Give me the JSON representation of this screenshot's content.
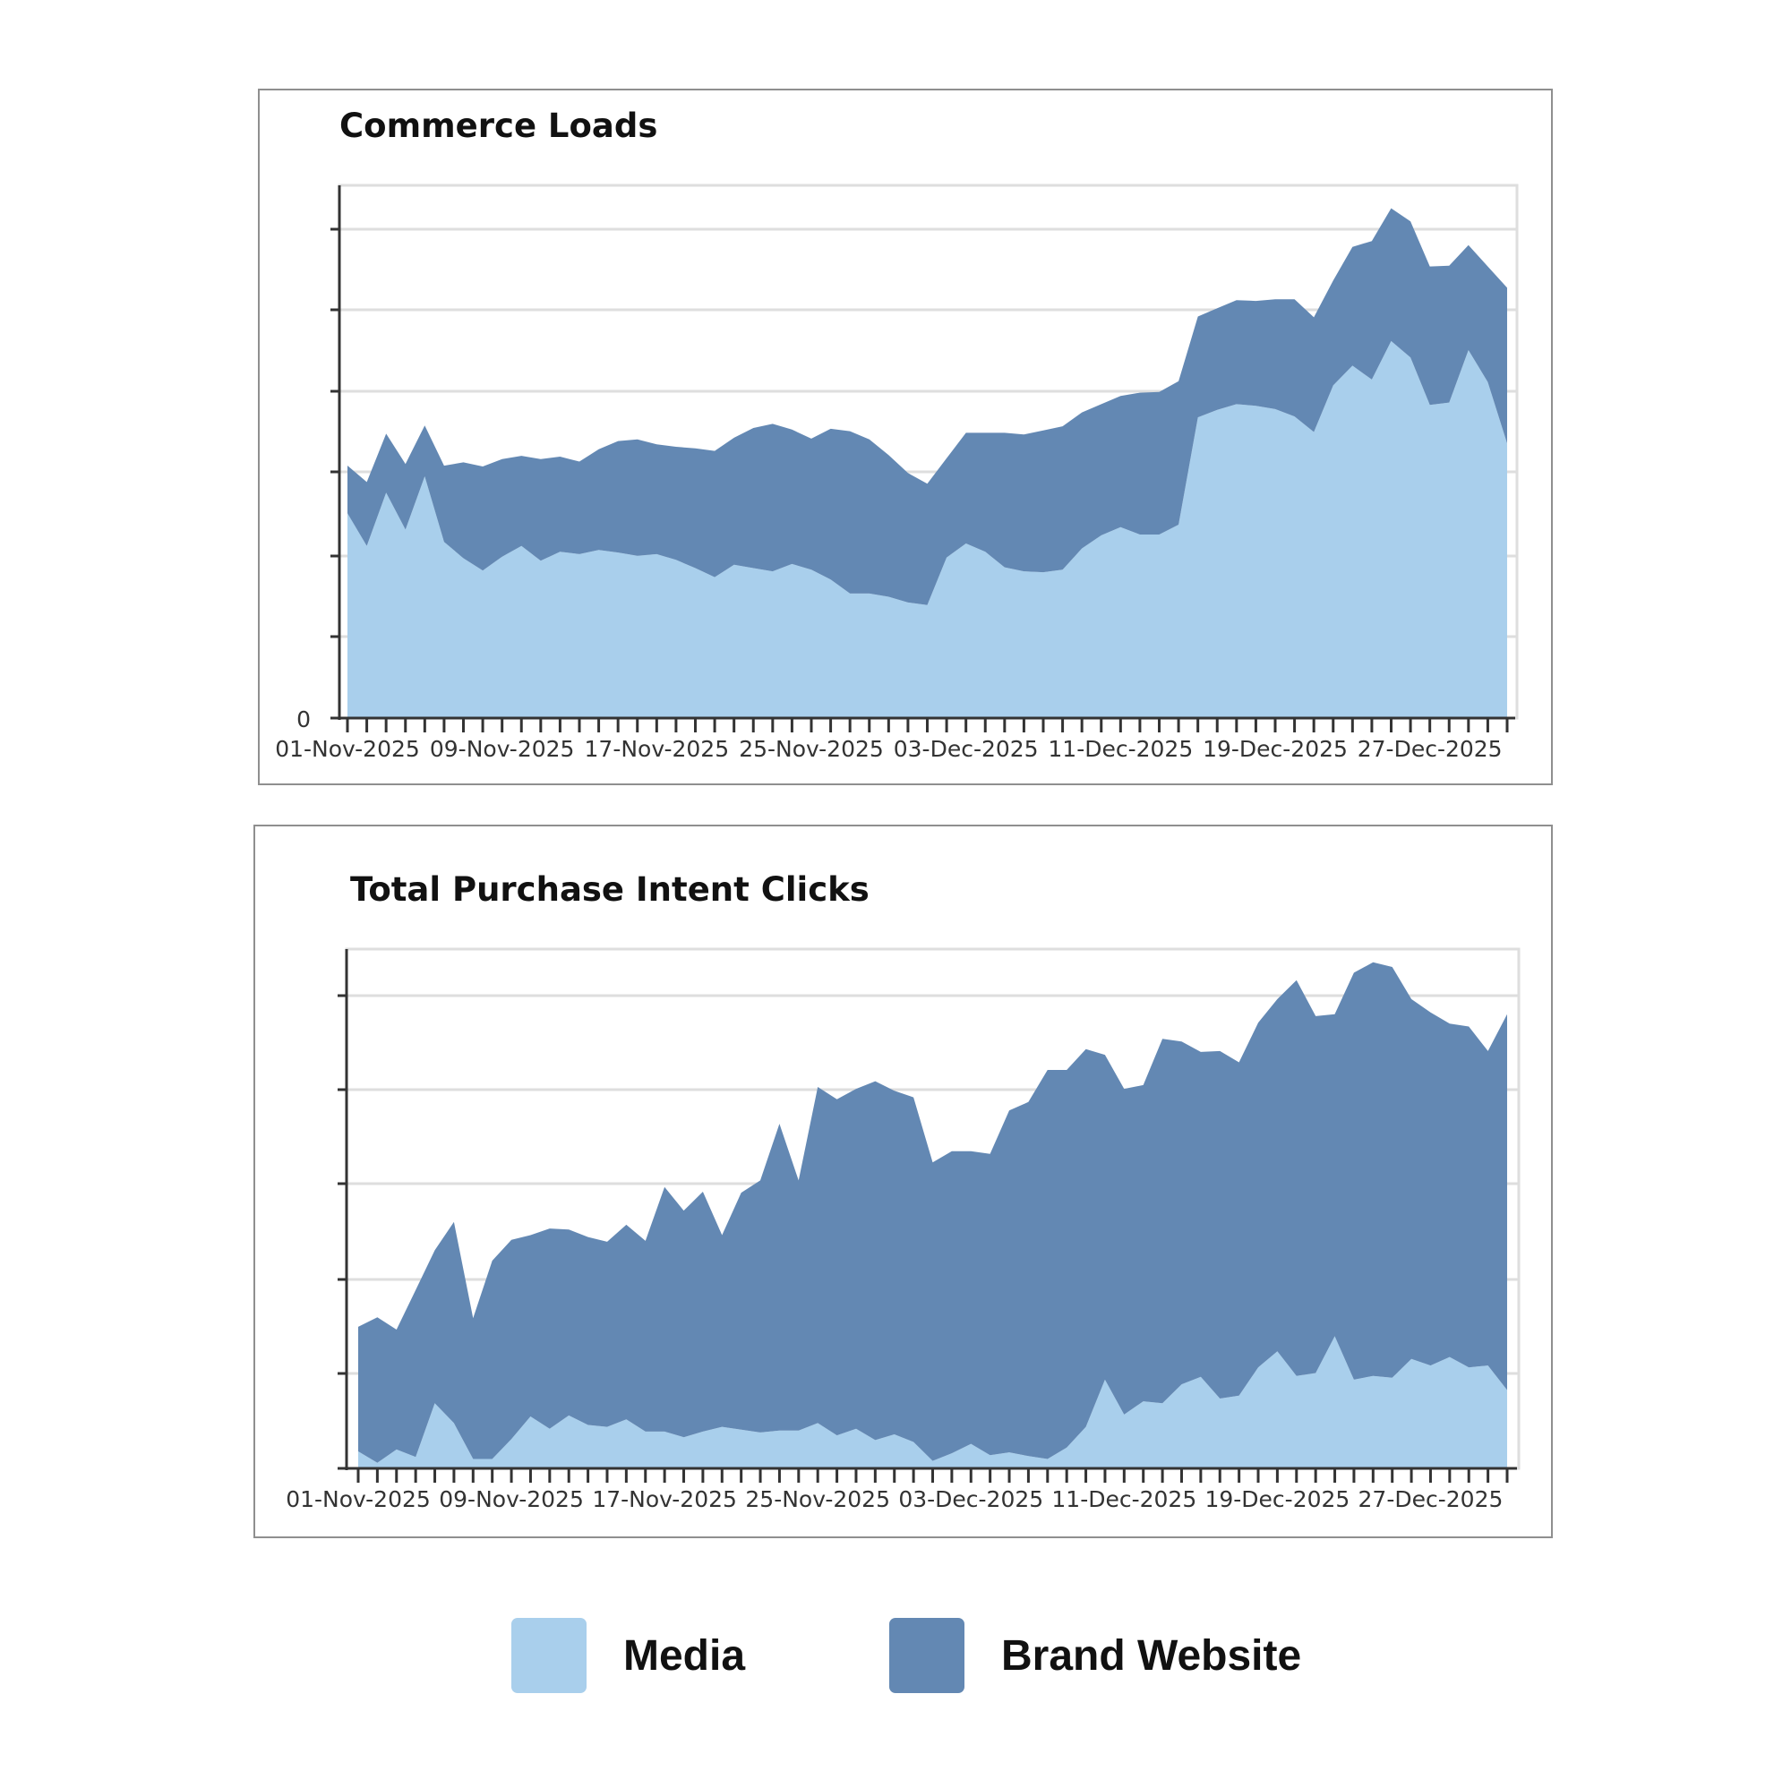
{
  "colors": {
    "media": "#a9cfec",
    "brand_website": "#6388b3",
    "axis": "#333333",
    "grid": "#dedede"
  },
  "legend": {
    "items": [
      {
        "name": "Media",
        "color": "#a9cfec"
      },
      {
        "name": "Brand Website",
        "color": "#6388b3"
      }
    ]
  },
  "chart_data": [
    {
      "type": "area",
      "stacked": true,
      "title": "Commerce Loads",
      "ylim": [
        0,
        6.5
      ],
      "y_tick_labels": [
        "0"
      ],
      "grid": true,
      "legend_position": "bottom",
      "x_tick_labels": [
        "01-Nov-2025",
        "09-Nov-2025",
        "17-Nov-2025",
        "25-Nov-2025",
        "03-Dec-2025",
        "11-Dec-2025",
        "19-Dec-2025",
        "27-Dec-2025"
      ],
      "series": [
        {
          "name": "Media",
          "values": [
            2.5,
            2.1,
            2.75,
            2.3,
            2.95,
            2.15,
            1.95,
            1.8,
            1.97,
            2.1,
            1.92,
            2.03,
            2.0,
            2.05,
            2.02,
            1.98,
            2.0,
            1.93,
            1.83,
            1.72,
            1.87,
            1.83,
            1.79,
            1.88,
            1.81,
            1.69,
            1.52,
            1.52,
            1.48,
            1.41,
            1.38,
            1.96,
            2.13,
            2.03,
            1.84,
            1.79,
            1.78,
            1.81,
            2.07,
            2.23,
            2.33,
            2.24,
            2.24,
            2.36,
            3.67,
            3.76,
            3.83,
            3.81,
            3.77,
            3.68,
            3.49,
            4.06,
            4.3,
            4.13,
            4.6,
            4.4,
            3.82,
            3.85,
            4.49,
            4.1,
            3.35
          ]
        },
        {
          "name": "Brand Website",
          "values": [
            0.58,
            0.78,
            0.72,
            0.8,
            0.62,
            0.93,
            1.17,
            1.27,
            1.19,
            1.1,
            1.24,
            1.16,
            1.13,
            1.23,
            1.36,
            1.42,
            1.34,
            1.38,
            1.46,
            1.54,
            1.55,
            1.71,
            1.8,
            1.64,
            1.6,
            1.84,
            1.98,
            1.88,
            1.73,
            1.58,
            1.48,
            1.21,
            1.35,
            1.45,
            1.64,
            1.67,
            1.73,
            1.75,
            1.66,
            1.6,
            1.6,
            1.73,
            1.74,
            1.75,
            1.23,
            1.24,
            1.27,
            1.28,
            1.34,
            1.43,
            1.4,
            1.28,
            1.45,
            1.69,
            1.62,
            1.66,
            1.69,
            1.67,
            1.28,
            1.41,
            1.9
          ]
        }
      ]
    },
    {
      "type": "area",
      "stacked": true,
      "title": "Total Purchase Intent Clicks",
      "ylim": [
        0,
        5.5
      ],
      "grid": true,
      "legend_position": "bottom",
      "x_tick_labels": [
        "01-Nov-2025",
        "09-Nov-2025",
        "17-Nov-2025",
        "25-Nov-2025",
        "03-Dec-2025",
        "11-Dec-2025",
        "19-Dec-2025",
        "27-Dec-2025"
      ],
      "series": [
        {
          "name": "Media",
          "values": [
            0.18,
            0.06,
            0.2,
            0.12,
            0.69,
            0.48,
            0.1,
            0.1,
            0.31,
            0.55,
            0.42,
            0.56,
            0.46,
            0.44,
            0.52,
            0.39,
            0.39,
            0.33,
            0.39,
            0.44,
            0.41,
            0.38,
            0.4,
            0.4,
            0.48,
            0.35,
            0.42,
            0.3,
            0.36,
            0.28,
            0.08,
            0.16,
            0.26,
            0.14,
            0.17,
            0.13,
            0.1,
            0.22,
            0.44,
            0.94,
            0.57,
            0.71,
            0.69,
            0.89,
            0.97,
            0.74,
            0.77,
            1.07,
            1.24,
            0.98,
            1.01,
            1.4,
            0.94,
            0.98,
            0.96,
            1.16,
            1.09,
            1.18,
            1.07,
            1.09,
            0.83
          ]
        },
        {
          "name": "Brand Website",
          "values": [
            1.32,
            1.54,
            1.27,
            1.77,
            1.62,
            2.13,
            1.49,
            2.1,
            2.11,
            1.92,
            2.12,
            1.97,
            1.99,
            1.96,
            2.06,
            2.02,
            2.59,
            2.4,
            2.54,
            2.03,
            2.51,
            2.67,
            3.25,
            2.65,
            3.56,
            3.56,
            3.6,
            3.8,
            3.64,
            3.65,
            3.16,
            3.2,
            3.1,
            3.19,
            3.62,
            3.75,
            4.12,
            4.0,
            4.0,
            3.44,
            3.45,
            3.35,
            3.86,
            3.63,
            3.44,
            3.68,
            3.53,
            3.65,
            3.73,
            4.19,
            3.78,
            3.41,
            4.31,
            4.38,
            4.35,
            3.81,
            3.74,
            3.53,
            3.61,
            3.33,
            3.98
          ]
        }
      ]
    }
  ]
}
